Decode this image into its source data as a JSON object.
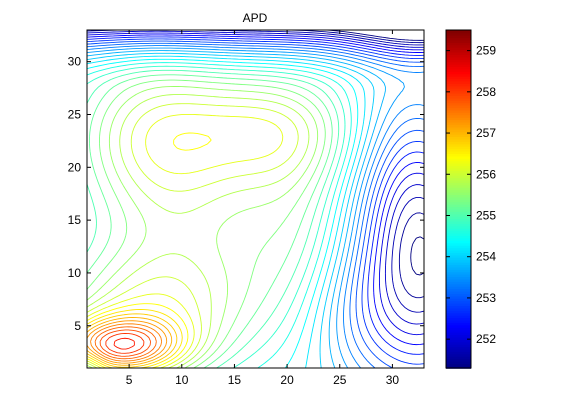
{
  "chart_data": {
    "type": "contour",
    "title": "APD",
    "xlabel": "",
    "ylabel": "",
    "xlim": [
      1,
      33
    ],
    "ylim": [
      1,
      33
    ],
    "x_ticks": [
      5,
      10,
      15,
      20,
      25,
      30
    ],
    "y_ticks": [
      5,
      10,
      15,
      20,
      25,
      30
    ],
    "colorbar": {
      "ticks": [
        252,
        253,
        254,
        255,
        256,
        257,
        258,
        259
      ],
      "range": [
        251.3,
        259.5
      ],
      "colormap": "jet"
    },
    "contour_levels": {
      "min": 251.3,
      "max": 259.5,
      "count": 41
    },
    "grid": false,
    "field_points": [
      {
        "x": 3.2,
        "y": 2.7,
        "value": 259.4
      },
      {
        "x": 5.0,
        "y": 3.6,
        "value": 258.6
      },
      {
        "x": 8.0,
        "y": 3.2,
        "value": 257.8
      },
      {
        "x": 6.5,
        "y": 7.0,
        "value": 256.9
      },
      {
        "x": 11.0,
        "y": 12.5,
        "value": 255.2
      },
      {
        "x": 18.0,
        "y": 24.3,
        "value": 256.2
      },
      {
        "x": 7.0,
        "y": 25.0,
        "value": 256.2
      },
      {
        "x": 26.0,
        "y": 16.0,
        "value": 254.2
      },
      {
        "x": 31.5,
        "y": 10.0,
        "value": 252.2
      },
      {
        "x": 32.7,
        "y": 32.9,
        "value": 251.4
      },
      {
        "x": 12.0,
        "y": 32.8,
        "value": 252.8
      }
    ]
  },
  "colors": {
    "text": "#000000",
    "axis": "#000000",
    "background": "#ffffff",
    "jet_low": "#00008f",
    "jet_high": "#800000"
  }
}
